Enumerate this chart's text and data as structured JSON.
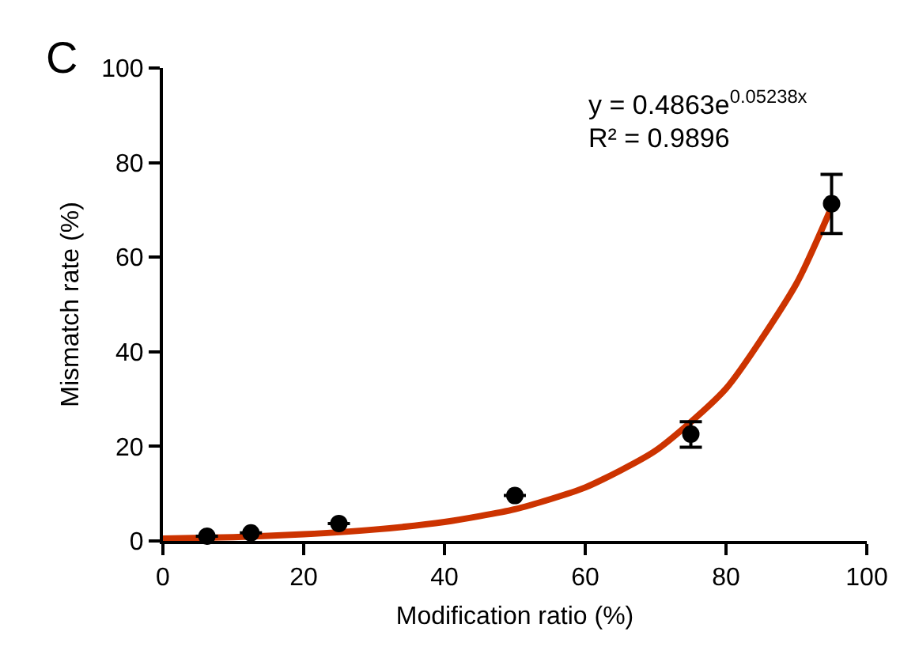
{
  "chart_data": {
    "type": "scatter",
    "xlabel": "Modification ratio (%)",
    "ylabel": "Mismatch rate (%)",
    "xlim": [
      0,
      100
    ],
    "xticks": [
      0,
      20,
      40,
      60,
      80,
      100
    ],
    "ylim": [
      0,
      100
    ],
    "yticks": [
      0,
      20,
      40,
      60,
      80,
      100
    ],
    "grid": false,
    "marker": "circle",
    "annotations": [
      "C",
      "y = 0.4863e$^{0.05238x}$",
      "R² = 0.9896"
    ],
    "series": [
      {
        "type": "line",
        "color": "#cc3300",
        "marker": "none",
        "line_style": "solid",
        "x": [
          0,
          10,
          20,
          30,
          40,
          50,
          60,
          70,
          80,
          90,
          95
        ],
        "values": [
          0.5,
          0.8,
          1.4,
          2.4,
          4,
          6.7,
          11.3,
          19.1,
          32.2,
          54.4,
          70.6
        ]
      },
      {
        "color": "#000000",
        "x": [
          6.25,
          12.5,
          25,
          50,
          75,
          95
        ],
        "values": [
          1,
          1.7,
          3.7,
          9.6,
          22.6,
          71.3
        ],
        "errors": [
          null,
          null,
          null,
          null,
          [
            19.8,
            25.2
          ],
          [
            65,
            77.5
          ]
        ]
      }
    ]
  }
}
